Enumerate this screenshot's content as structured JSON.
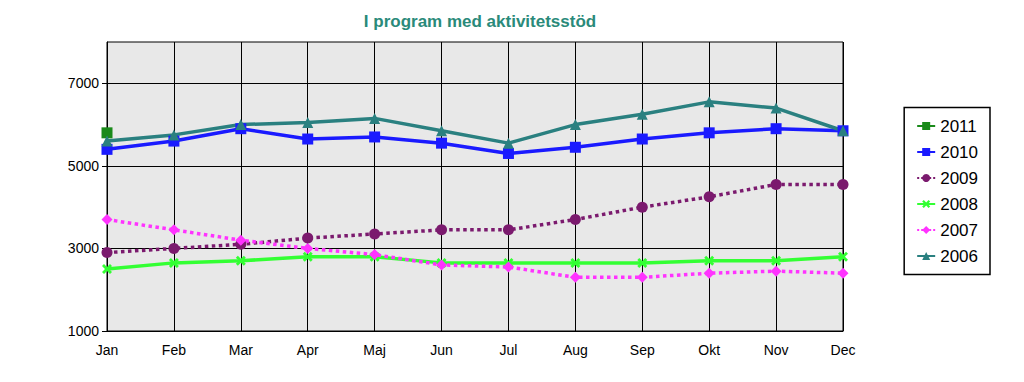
{
  "chart_data": {
    "type": "line",
    "title": "I program med aktivitetsstöd",
    "categories": [
      "Jan",
      "Feb",
      "Mar",
      "Apr",
      "Maj",
      "Jun",
      "Jul",
      "Aug",
      "Sep",
      "Okt",
      "Nov",
      "Dec"
    ],
    "ylim": [
      1000,
      8000
    ],
    "yticks": [
      1000,
      3000,
      5000,
      7000
    ],
    "grid": true,
    "legend": "right",
    "series": [
      {
        "name": "2011",
        "color": "#1a8a1a",
        "marker": "square",
        "line_style": "solid",
        "values": [
          5800,
          null,
          null,
          null,
          null,
          null,
          null,
          null,
          null,
          null,
          null,
          null
        ]
      },
      {
        "name": "2010",
        "color": "#1a1aff",
        "marker": "square",
        "line_style": "solid",
        "values": [
          5400,
          5600,
          5900,
          5650,
          5700,
          5550,
          5300,
          5450,
          5650,
          5800,
          5900,
          5850
        ]
      },
      {
        "name": "2009",
        "color": "#7b1a6e",
        "marker": "circle",
        "line_style": "dotted",
        "values": [
          2900,
          3000,
          3100,
          3250,
          3350,
          3450,
          3450,
          3700,
          4000,
          4250,
          4550,
          4550
        ]
      },
      {
        "name": "2008",
        "color": "#33ff33",
        "marker": "x",
        "line_style": "solid",
        "values": [
          2500,
          2650,
          2700,
          2800,
          2800,
          2650,
          2650,
          2650,
          2650,
          2700,
          2700,
          2800
        ]
      },
      {
        "name": "2007",
        "color": "#ff33ff",
        "marker": "diamond",
        "line_style": "dotted",
        "values": [
          3700,
          3450,
          3200,
          3000,
          2850,
          2600,
          2550,
          2300,
          2300,
          2400,
          2450,
          2400
        ]
      },
      {
        "name": "2006",
        "color": "#2a8080",
        "marker": "triangle",
        "line_style": "solid",
        "values": [
          5600,
          5750,
          6000,
          6050,
          6150,
          5850,
          5550,
          6000,
          6250,
          6550,
          6400,
          5850
        ]
      }
    ]
  }
}
